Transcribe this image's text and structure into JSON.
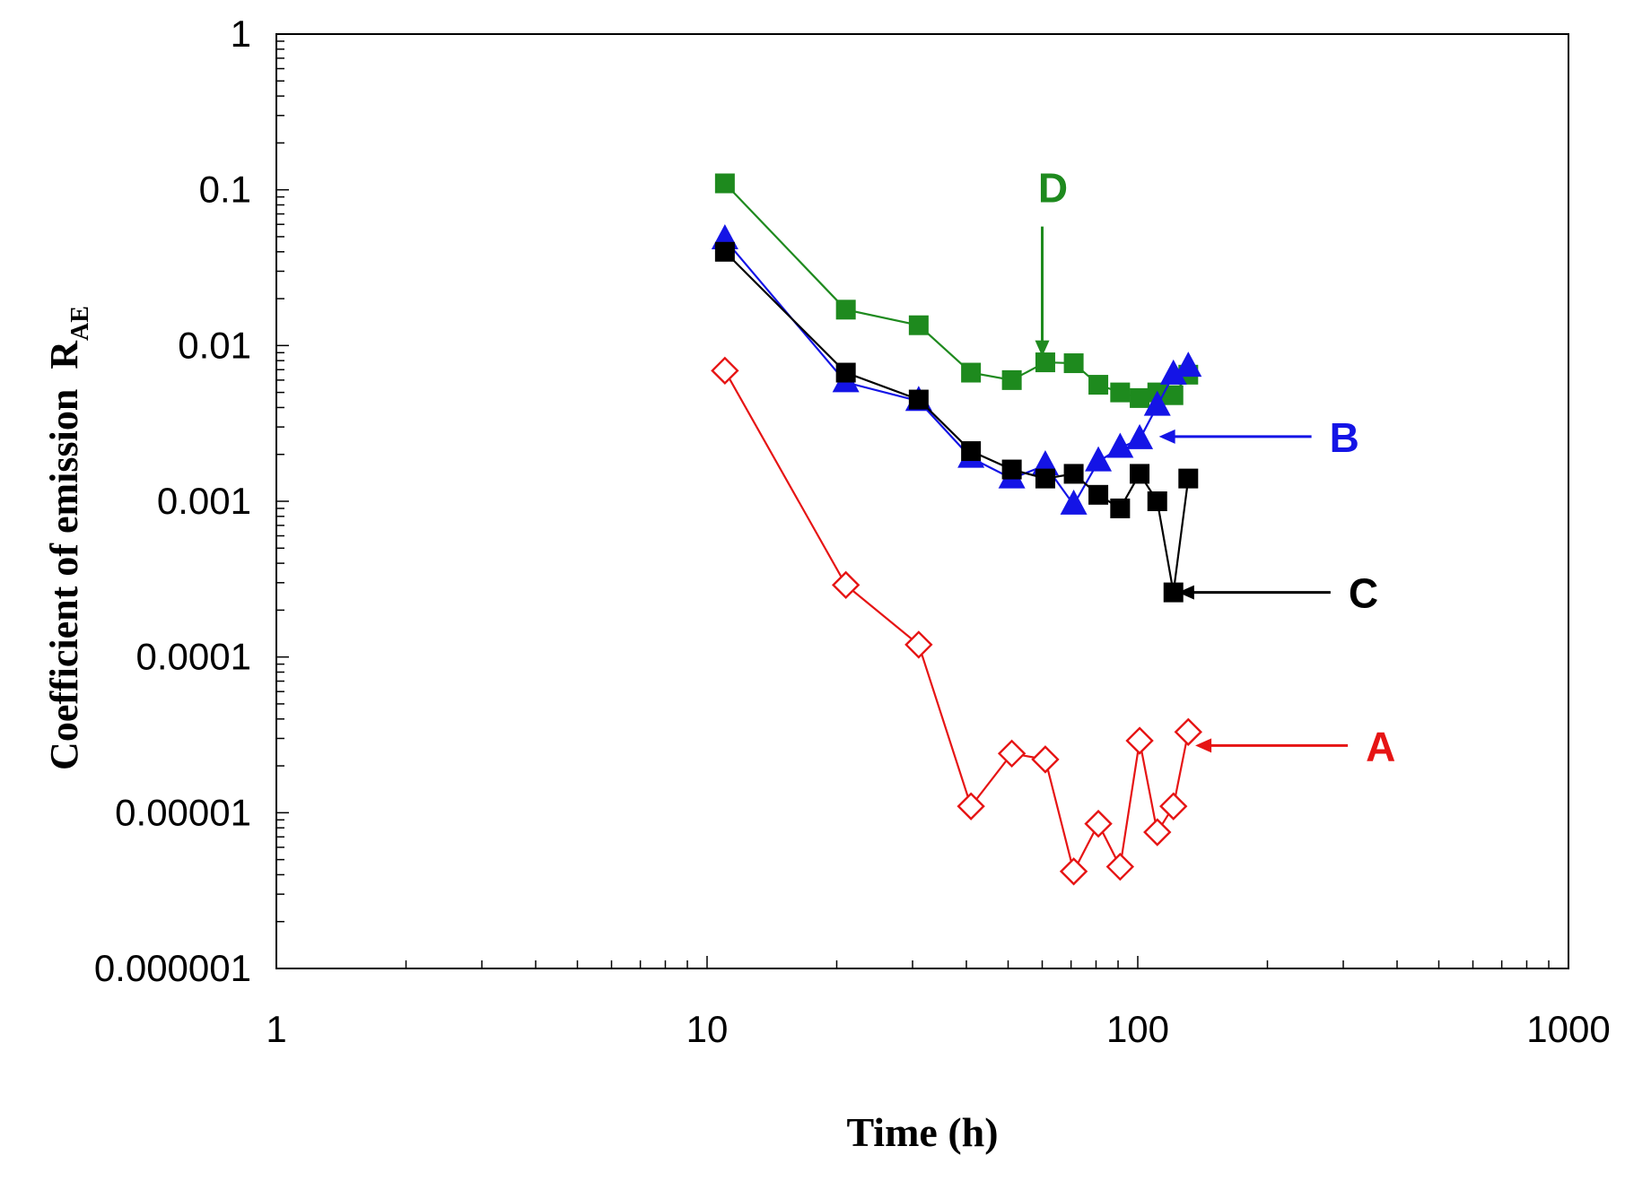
{
  "chart_data": {
    "type": "scatter",
    "title": "",
    "xlabel": "Time  (h)",
    "ylabel_main": "Coefficient of emission  R",
    "ylabel_sub": "AE",
    "x_scale": "log",
    "y_scale": "log",
    "xlim": [
      1,
      1000
    ],
    "ylim": [
      1e-06,
      1
    ],
    "grid": false,
    "legend": "none",
    "x_tick_labels": [
      "1",
      "10",
      "100",
      "1000"
    ],
    "y_tick_labels": [
      "1",
      "0.1",
      "0.01",
      "0.001",
      "0.0001",
      "0.00001",
      "0.000001"
    ],
    "series": [
      {
        "name": "D",
        "color": "#1e8a1e",
        "marker": "square-filled",
        "x": [
          11,
          21,
          31,
          41,
          51,
          61,
          71,
          81,
          91,
          101,
          111,
          121,
          131
        ],
        "y": [
          0.11,
          0.017,
          0.0135,
          0.0067,
          0.006,
          0.0078,
          0.0077,
          0.0056,
          0.005,
          0.0046,
          0.005,
          0.0048,
          0.0065
        ]
      },
      {
        "name": "B",
        "color": "#1414e6",
        "marker": "triangle-filled",
        "x": [
          11,
          21,
          31,
          41,
          51,
          61,
          71,
          81,
          91,
          101,
          111,
          121,
          131
        ],
        "y": [
          0.048,
          0.0058,
          0.0044,
          0.0019,
          0.0014,
          0.0017,
          0.00095,
          0.0018,
          0.0022,
          0.0025,
          0.0041,
          0.0065,
          0.0073
        ]
      },
      {
        "name": "C",
        "color": "#000000",
        "marker": "square-filled",
        "x": [
          11,
          21,
          31,
          41,
          51,
          61,
          71,
          81,
          91,
          101,
          111,
          121,
          131
        ],
        "y": [
          0.04,
          0.0067,
          0.0045,
          0.0021,
          0.0016,
          0.0014,
          0.0015,
          0.0011,
          0.0009,
          0.0015,
          0.001,
          0.00026,
          0.0014
        ]
      },
      {
        "name": "A",
        "color": "#e61414",
        "marker": "diamond-open",
        "x": [
          11,
          21,
          31,
          41,
          51,
          61,
          71,
          81,
          91,
          101,
          111,
          121,
          131
        ],
        "y": [
          0.0069,
          0.00029,
          0.00012,
          1.1e-05,
          2.4e-05,
          2.2e-05,
          4.2e-06,
          8.5e-06,
          4.5e-06,
          2.9e-05,
          7.5e-06,
          1.1e-05,
          3.3e-05
        ]
      }
    ],
    "annotations": [
      {
        "label": "D",
        "series": "D",
        "color": "#1e8a1e",
        "pointing": "down",
        "target_x": 60,
        "target_y": 0.0085
      },
      {
        "label": "B",
        "series": "B",
        "color": "#1414e6",
        "pointing": "left",
        "target_x": 112,
        "target_y": 0.0026
      },
      {
        "label": "C",
        "series": "C",
        "color": "#000000",
        "pointing": "left",
        "target_x": 124,
        "target_y": 0.00026
      },
      {
        "label": "A",
        "series": "A",
        "color": "#e61414",
        "pointing": "left",
        "target_x": 136,
        "target_y": 2.7e-05
      }
    ]
  }
}
